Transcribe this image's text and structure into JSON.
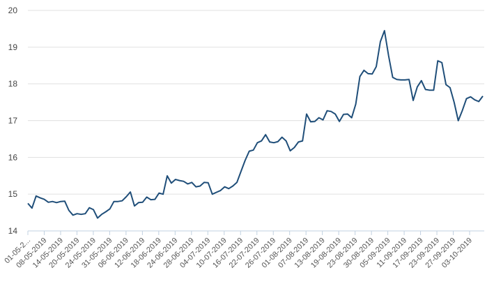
{
  "chart_data": {
    "type": "line",
    "title": "",
    "xlabel": "",
    "ylabel": "",
    "ylim": [
      14,
      20
    ],
    "yticks": [
      14,
      15,
      16,
      17,
      18,
      19,
      20
    ],
    "grid": true,
    "legend": null,
    "line_color": "#1f4e79",
    "x_tick_labels": [
      "01-05-2...",
      "08-05-2019",
      "14-05-2019",
      "20-05-2019",
      "24-05-2019",
      "31-05-2019",
      "06-06-2019",
      "12-06-2019",
      "18-06-2019",
      "24-06-2019",
      "28-06-2019",
      "04-07-2019",
      "10-07-2019",
      "16-07-2019",
      "22-07-2019",
      "26-07-2019",
      "01-08-2019",
      "07-08-2019",
      "13-08-2019",
      "19-08-2019",
      "23-08-2019",
      "30-08-2019",
      "05-09-2019",
      "11-09-2019",
      "17-09-2019",
      "23-09-2019",
      "27-09-2019",
      "03-10-2019"
    ],
    "values": [
      14.75,
      14.62,
      14.95,
      14.9,
      14.86,
      14.78,
      14.8,
      14.77,
      14.8,
      14.81,
      14.56,
      14.43,
      14.47,
      14.45,
      14.47,
      14.63,
      14.58,
      14.35,
      14.45,
      14.52,
      14.6,
      14.8,
      14.8,
      14.82,
      14.93,
      15.06,
      14.68,
      14.77,
      14.78,
      14.92,
      14.85,
      14.86,
      15.03,
      15.0,
      15.5,
      15.3,
      15.4,
      15.37,
      15.35,
      15.28,
      15.32,
      15.2,
      15.22,
      15.32,
      15.31,
      15.0,
      15.05,
      15.1,
      15.2,
      15.15,
      15.22,
      15.32,
      15.62,
      15.92,
      16.17,
      16.2,
      16.4,
      16.45,
      16.62,
      16.42,
      16.4,
      16.43,
      16.55,
      16.45,
      16.18,
      16.27,
      16.42,
      16.45,
      17.18,
      16.97,
      16.98,
      17.08,
      17.02,
      17.27,
      17.25,
      17.18,
      16.98,
      17.17,
      17.18,
      17.08,
      17.45,
      18.2,
      18.37,
      18.28,
      18.27,
      18.47,
      19.15,
      19.45,
      18.77,
      18.18,
      18.12,
      18.11,
      18.11,
      18.12,
      17.55,
      17.92,
      18.09,
      17.85,
      17.83,
      17.83,
      18.63,
      18.58,
      17.98,
      17.9,
      17.5,
      17.0,
      17.28,
      17.6,
      17.65,
      17.57,
      17.52,
      17.67
    ]
  },
  "axis": {
    "y_labels": [
      "20",
      "19",
      "18",
      "17",
      "16",
      "15",
      "14"
    ]
  }
}
